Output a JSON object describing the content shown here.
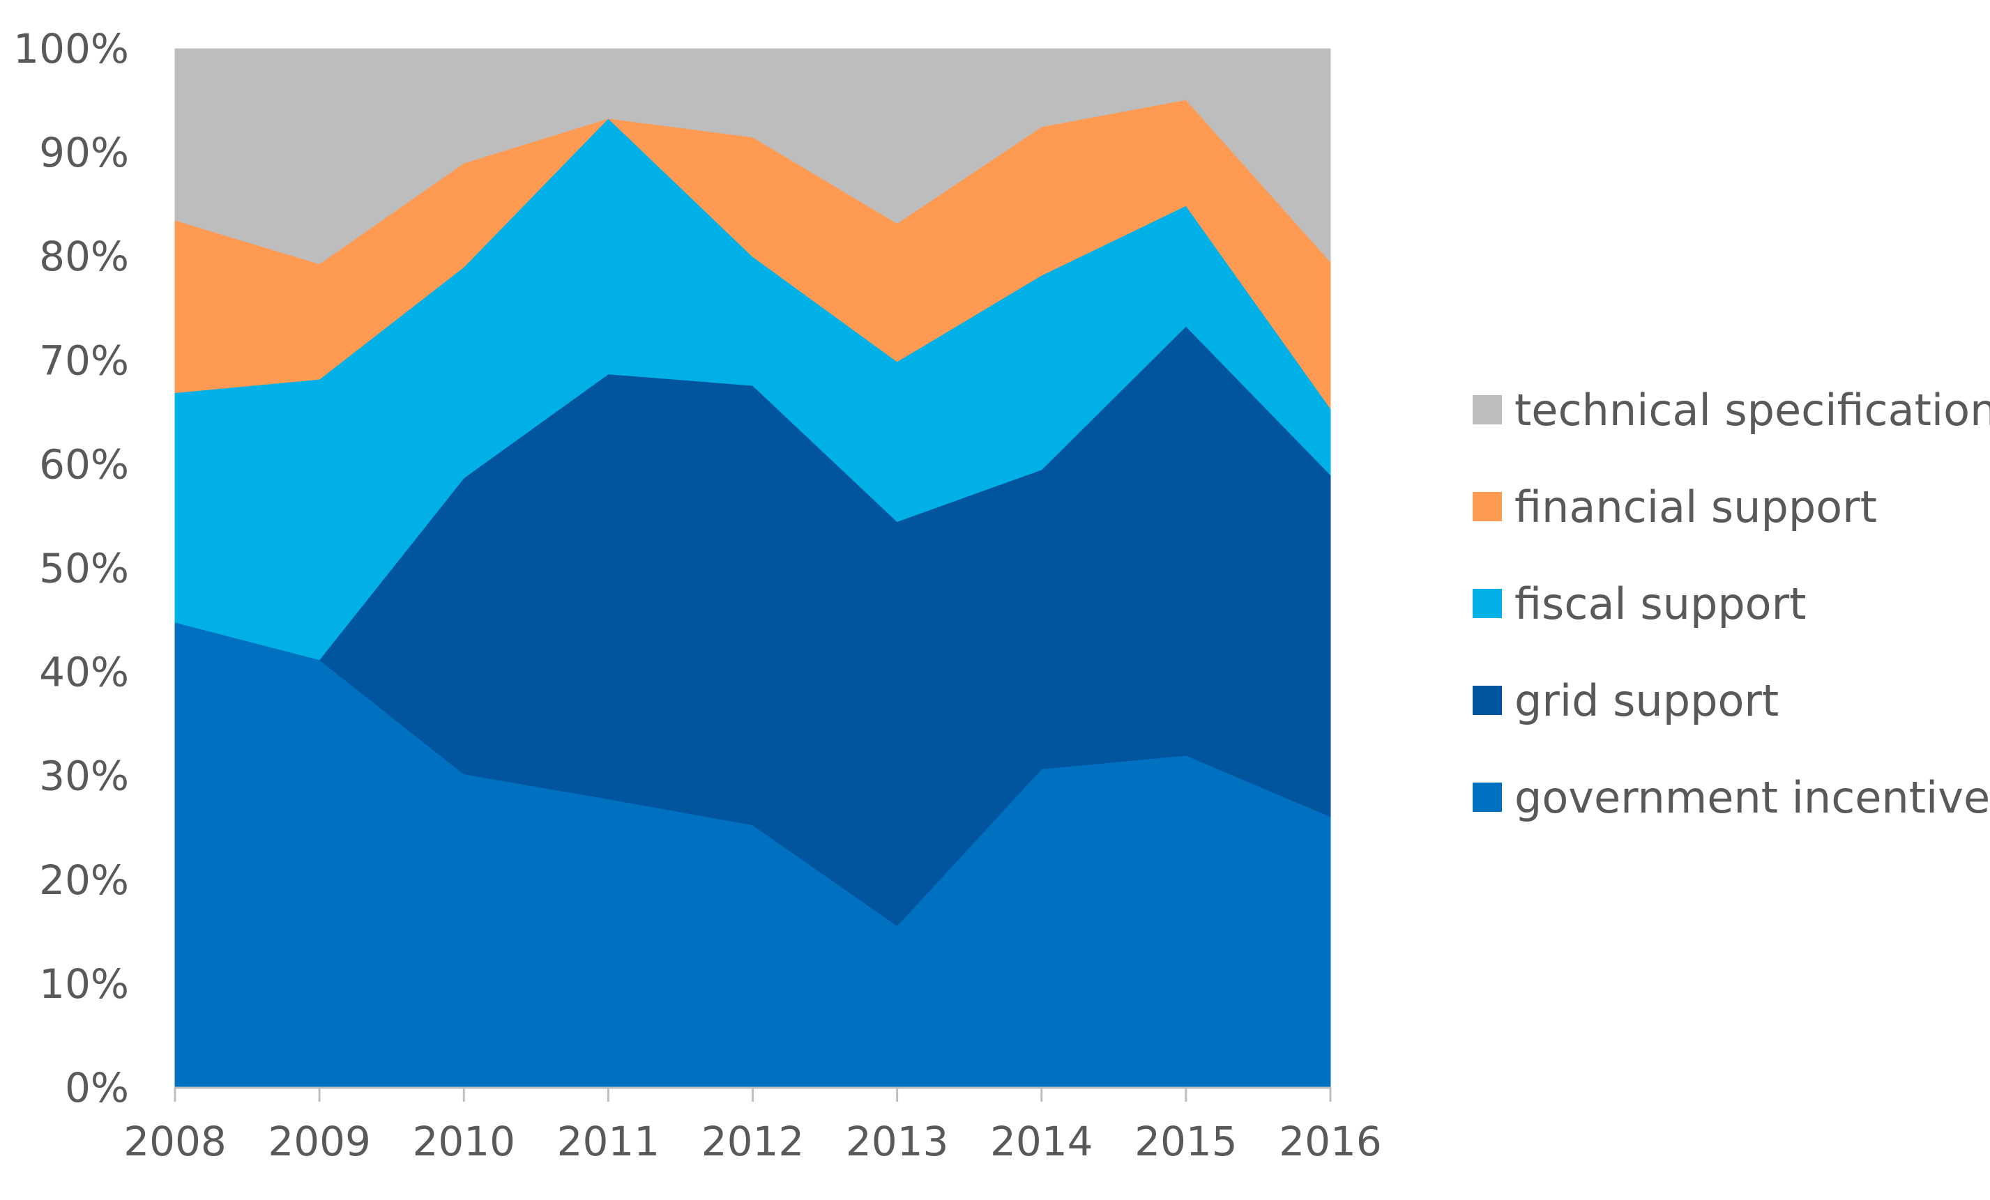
{
  "chart_data": {
    "type": "area",
    "stacked": true,
    "x": [
      2008,
      2009,
      2010,
      2011,
      2012,
      2013,
      2014,
      2015,
      2016
    ],
    "x_tick_labels": [
      "2008",
      "2009",
      "2010",
      "2011",
      "2012",
      "2013",
      "2014",
      "2015",
      "2016"
    ],
    "y_tick_labels": [
      "0%",
      "10%",
      "20%",
      "30%",
      "40%",
      "50%",
      "60%",
      "70%",
      "80%",
      "90%",
      "100%"
    ],
    "ylim": [
      0,
      100
    ],
    "y_unit": "%",
    "grid": false,
    "legend_position": "right",
    "series": [
      {
        "name": "government incentive",
        "color": "#0070C0",
        "values": [
          44.8,
          41.2,
          30.2,
          27.8,
          25.3,
          15.6,
          30.7,
          32.0,
          26.1
        ]
      },
      {
        "name": "grid support",
        "color": "#00559E",
        "values": [
          0.0,
          0.0,
          28.5,
          40.9,
          42.3,
          38.9,
          28.8,
          41.3,
          32.9
        ]
      },
      {
        "name": "fiscal support",
        "color": "#00B0E6",
        "values": [
          22.1,
          27.0,
          20.3,
          24.6,
          12.4,
          15.4,
          18.7,
          11.6,
          6.4
        ]
      },
      {
        "name": "financial support",
        "color": "#FF9A52",
        "values": [
          16.6,
          11.1,
          10.0,
          0.0,
          11.5,
          13.3,
          14.3,
          10.2,
          14.1
        ]
      },
      {
        "name": "technical specification",
        "color": "#BDBDBD",
        "values": [
          16.5,
          20.7,
          11.0,
          6.7,
          8.5,
          16.8,
          7.5,
          4.9,
          20.5
        ]
      }
    ],
    "legend_order": [
      "technical specification",
      "financial support",
      "fiscal support",
      "grid support",
      "government incentive"
    ]
  }
}
